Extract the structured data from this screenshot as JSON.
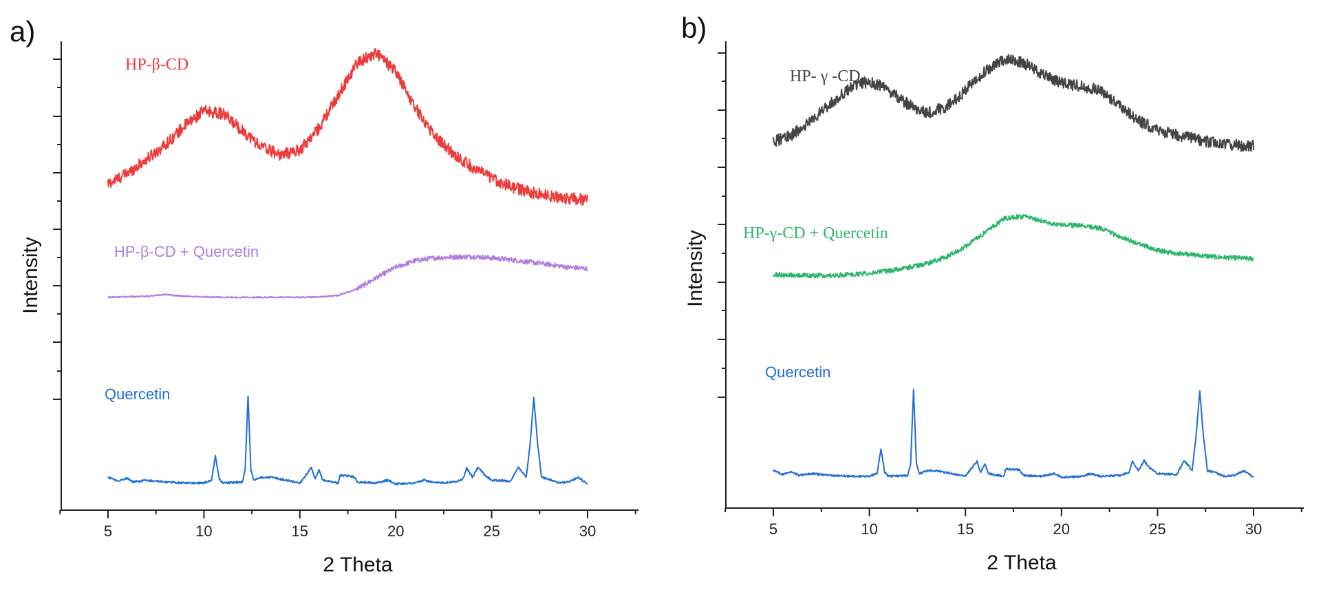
{
  "chart_data": [
    {
      "type": "line",
      "panel_label": "a)",
      "xlabel": "2 Theta",
      "ylabel": "Intensity",
      "xlim": [
        2.5,
        32.5
      ],
      "xticks": [
        5,
        10,
        15,
        20,
        25,
        30
      ],
      "xtick_labels": [
        "5",
        "10",
        "15",
        "20",
        "25",
        "30"
      ],
      "y_tick_labels": "none",
      "series": [
        {
          "name": "HP-β-CD",
          "color": "#ee3b3b",
          "label_font": "serif",
          "x": [
            5,
            6,
            7,
            8,
            9,
            10,
            11,
            12,
            13,
            14,
            15,
            16,
            17,
            18,
            19,
            20,
            21,
            22,
            23,
            24,
            25,
            26,
            27,
            28,
            29,
            30
          ],
          "y": [
            0.696,
            0.718,
            0.748,
            0.78,
            0.82,
            0.852,
            0.845,
            0.81,
            0.775,
            0.758,
            0.768,
            0.815,
            0.885,
            0.955,
            0.975,
            0.935,
            0.86,
            0.8,
            0.76,
            0.731,
            0.708,
            0.69,
            0.678,
            0.67,
            0.665,
            0.662
          ]
        },
        {
          "name": "HP-β-CD + Quercetin",
          "color": "#b07ee0",
          "label_font": "sans",
          "x": [
            5,
            6,
            7,
            8,
            9,
            10,
            11,
            12,
            13,
            14,
            15,
            16,
            17,
            18,
            19,
            20,
            21,
            22,
            23,
            24,
            25,
            26,
            27,
            28,
            29,
            30
          ],
          "y": [
            0.454,
            0.455,
            0.456,
            0.46,
            0.456,
            0.455,
            0.454,
            0.454,
            0.454,
            0.454,
            0.454,
            0.455,
            0.458,
            0.472,
            0.496,
            0.518,
            0.532,
            0.538,
            0.54,
            0.541,
            0.538,
            0.534,
            0.529,
            0.524,
            0.518,
            0.515
          ]
        },
        {
          "name": "Quercetin",
          "color": "#1f6fd6",
          "label_font": "sans",
          "x": [
            5,
            5.5,
            6,
            6.3,
            7,
            8,
            9,
            10,
            10.4,
            10.6,
            10.8,
            11,
            12,
            12.15,
            12.3,
            12.45,
            12.6,
            13,
            13.5,
            14,
            15,
            15.6,
            15.8,
            16,
            16.2,
            17,
            17.1,
            17.8,
            18,
            19,
            19.6,
            20,
            21,
            21.5,
            22,
            23,
            23.5,
            23.7,
            24,
            24.3,
            24.6,
            25,
            26,
            26.4,
            26.8,
            27,
            27.2,
            27.4,
            27.6,
            28,
            28.5,
            29,
            29.5,
            30
          ],
          "y": [
            0.07,
            0.062,
            0.068,
            0.06,
            0.064,
            0.06,
            0.058,
            0.058,
            0.064,
            0.116,
            0.066,
            0.058,
            0.06,
            0.085,
            0.245,
            0.085,
            0.064,
            0.07,
            0.07,
            0.066,
            0.058,
            0.09,
            0.066,
            0.085,
            0.064,
            0.058,
            0.074,
            0.072,
            0.06,
            0.058,
            0.064,
            0.056,
            0.058,
            0.064,
            0.058,
            0.06,
            0.066,
            0.09,
            0.07,
            0.092,
            0.076,
            0.064,
            0.062,
            0.092,
            0.07,
            0.14,
            0.24,
            0.14,
            0.07,
            0.066,
            0.058,
            0.06,
            0.07,
            0.056
          ]
        }
      ]
    },
    {
      "type": "line",
      "panel_label": "b)",
      "xlabel": "2 Theta",
      "ylabel": "Intensity",
      "xlim": [
        2.5,
        32.5
      ],
      "xticks": [
        5,
        10,
        15,
        20,
        25,
        30
      ],
      "xtick_labels": [
        "5",
        "10",
        "15",
        "20",
        "25",
        "30"
      ],
      "y_tick_labels": "none",
      "series": [
        {
          "name": "HP- γ -CD",
          "color": "#444444",
          "label_font": "serif",
          "x": [
            5,
            6,
            7,
            8,
            9,
            10,
            11,
            12,
            13,
            14,
            15,
            16,
            17,
            18,
            19,
            20,
            21,
            22,
            23,
            24,
            25,
            26,
            27,
            28,
            29,
            30
          ],
          "y": [
            0.785,
            0.8,
            0.83,
            0.868,
            0.9,
            0.915,
            0.895,
            0.865,
            0.845,
            0.86,
            0.895,
            0.935,
            0.96,
            0.955,
            0.93,
            0.91,
            0.905,
            0.895,
            0.865,
            0.83,
            0.81,
            0.8,
            0.79,
            0.782,
            0.778,
            0.775
          ]
        },
        {
          "name": "HP-γ-CD + Quercetin",
          "color": "#2bb66a",
          "label_font": "serif",
          "x": [
            5,
            6,
            7,
            8,
            9,
            10,
            11,
            12,
            13,
            14,
            15,
            16,
            17,
            18,
            19,
            20,
            21,
            22,
            23,
            24,
            25,
            26,
            27,
            28,
            29,
            30
          ],
          "y": [
            0.5,
            0.5,
            0.498,
            0.498,
            0.5,
            0.503,
            0.508,
            0.515,
            0.524,
            0.538,
            0.56,
            0.59,
            0.62,
            0.625,
            0.615,
            0.606,
            0.605,
            0.6,
            0.582,
            0.566,
            0.552,
            0.546,
            0.542,
            0.538,
            0.536,
            0.534
          ]
        },
        {
          "name": "Quercetin",
          "color": "#1f6fd6",
          "label_font": "sans",
          "x": [
            5,
            5.5,
            6,
            6.3,
            7,
            8,
            9,
            10,
            10.4,
            10.6,
            10.8,
            11,
            12,
            12.15,
            12.3,
            12.45,
            12.6,
            13,
            13.5,
            14,
            15,
            15.6,
            15.8,
            16,
            16.2,
            17,
            17.1,
            17.8,
            18,
            19,
            19.6,
            20,
            21,
            21.5,
            22,
            23,
            23.5,
            23.7,
            24,
            24.3,
            24.6,
            25,
            26,
            26.4,
            26.8,
            27,
            27.2,
            27.4,
            27.6,
            28,
            28.5,
            29,
            29.5,
            30
          ],
          "y": [
            0.08,
            0.072,
            0.078,
            0.07,
            0.074,
            0.07,
            0.068,
            0.068,
            0.074,
            0.126,
            0.076,
            0.068,
            0.07,
            0.095,
            0.255,
            0.095,
            0.074,
            0.08,
            0.08,
            0.076,
            0.068,
            0.1,
            0.076,
            0.095,
            0.074,
            0.068,
            0.084,
            0.082,
            0.07,
            0.068,
            0.074,
            0.066,
            0.068,
            0.074,
            0.068,
            0.07,
            0.076,
            0.1,
            0.08,
            0.102,
            0.086,
            0.074,
            0.072,
            0.102,
            0.08,
            0.15,
            0.25,
            0.15,
            0.08,
            0.076,
            0.068,
            0.07,
            0.08,
            0.066
          ]
        }
      ]
    }
  ]
}
